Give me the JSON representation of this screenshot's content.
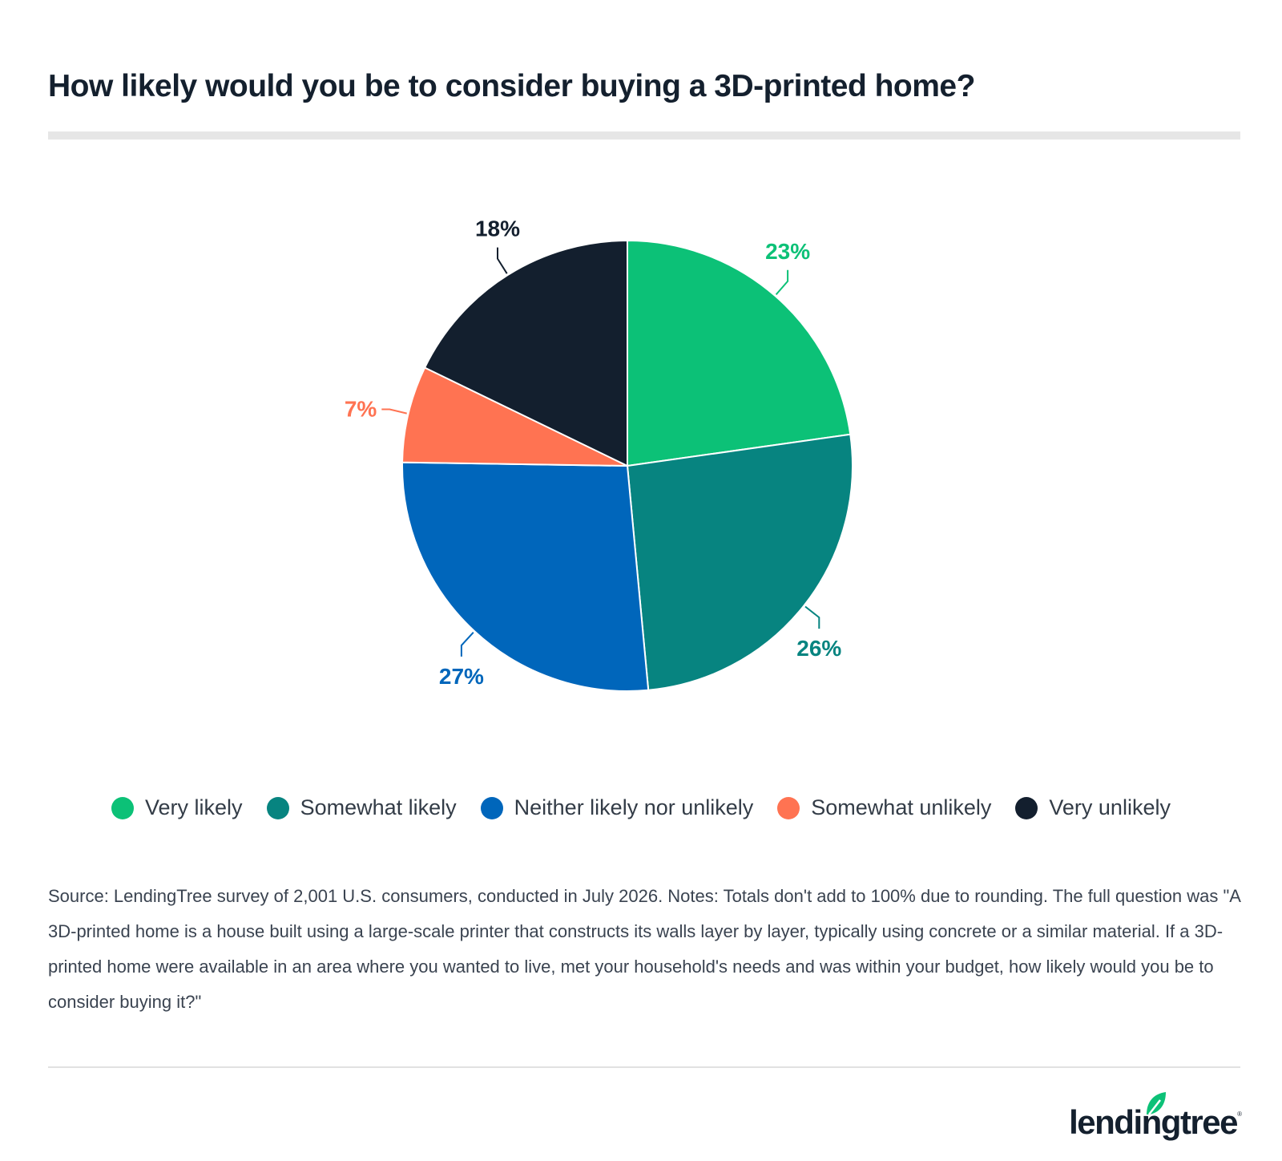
{
  "title": "How likely would you be to consider buying a 3D-printed home?",
  "chart_data": {
    "type": "pie",
    "title": "How likely would you be to consider buying a 3D-printed home?",
    "categories": [
      "Very likely",
      "Somewhat likely",
      "Neither likely nor unlikely",
      "Somewhat unlikely",
      "Very unlikely"
    ],
    "values": [
      23,
      26,
      27,
      7,
      18
    ],
    "labels": [
      "23%",
      "26%",
      "27%",
      "7%",
      "18%"
    ],
    "colors": [
      "#0cc177",
      "#078480",
      "#0066bb",
      "#ff7352",
      "#131f2e"
    ],
    "label_colors": [
      "#0cc177",
      "#078480",
      "#0066bb",
      "#ff7352",
      "#131f2e"
    ],
    "start_angle": "12 o'clock, clockwise",
    "legend_position": "bottom",
    "unit": "%"
  },
  "legend": [
    {
      "label": "Very likely",
      "color": "#0cc177"
    },
    {
      "label": "Somewhat likely",
      "color": "#078480"
    },
    {
      "label": "Neither likely nor unlikely",
      "color": "#0066bb"
    },
    {
      "label": "Somewhat unlikely",
      "color": "#ff7352"
    },
    {
      "label": "Very unlikely",
      "color": "#131f2e"
    }
  ],
  "source": "Source: LendingTree survey of 2,001 U.S. consumers, conducted in July 2026. Notes: Totals don't add to 100% due to rounding. The full question was \"A 3D-printed home is a house built using a large-scale printer that constructs its walls layer by layer, typically using concrete or a similar material. If a 3D-printed home were available in an area where you wanted to live, met your household's needs and was within your budget, how likely would you be to consider buying it?\"",
  "brand": {
    "logo_text": "lendingtree",
    "reg_mark": "®",
    "leaf_color": "#0cc177",
    "logo_icon": "leaf-icon"
  }
}
